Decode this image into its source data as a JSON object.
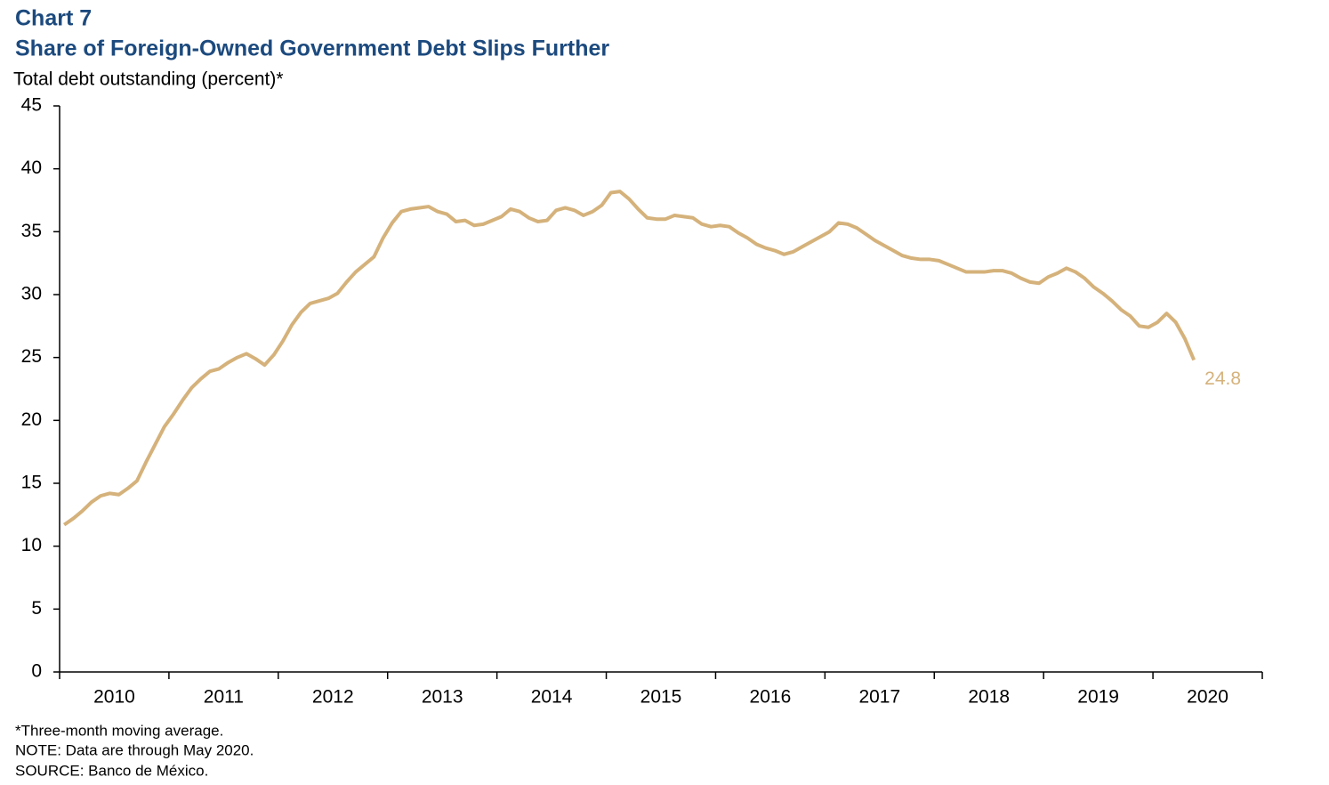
{
  "chart_data": {
    "type": "line",
    "chart_label": "Chart 7",
    "title": "Share of Foreign-Owned Government Debt Slips Further",
    "y_label": "Total debt outstanding (percent)*",
    "notes": [
      "*Three-month moving average.",
      "NOTE: Data are through May 2020.",
      "SOURCE: Banco de México."
    ],
    "color": "#d5b27b",
    "x": [
      "2010-01",
      "2010-02",
      "2010-03",
      "2010-04",
      "2010-05",
      "2010-06",
      "2010-07",
      "2010-08",
      "2010-09",
      "2010-10",
      "2010-11",
      "2010-12",
      "2011-01",
      "2011-02",
      "2011-03",
      "2011-04",
      "2011-05",
      "2011-06",
      "2011-07",
      "2011-08",
      "2011-09",
      "2011-10",
      "2011-11",
      "2011-12",
      "2012-01",
      "2012-02",
      "2012-03",
      "2012-04",
      "2012-05",
      "2012-06",
      "2012-07",
      "2012-08",
      "2012-09",
      "2012-10",
      "2012-11",
      "2012-12",
      "2013-01",
      "2013-02",
      "2013-03",
      "2013-04",
      "2013-05",
      "2013-06",
      "2013-07",
      "2013-08",
      "2013-09",
      "2013-10",
      "2013-11",
      "2013-12",
      "2014-01",
      "2014-02",
      "2014-03",
      "2014-04",
      "2014-05",
      "2014-06",
      "2014-07",
      "2014-08",
      "2014-09",
      "2014-10",
      "2014-11",
      "2014-12",
      "2015-01",
      "2015-02",
      "2015-03",
      "2015-04",
      "2015-05",
      "2015-06",
      "2015-07",
      "2015-08",
      "2015-09",
      "2015-10",
      "2015-11",
      "2015-12",
      "2016-01",
      "2016-02",
      "2016-03",
      "2016-04",
      "2016-05",
      "2016-06",
      "2016-07",
      "2016-08",
      "2016-09",
      "2016-10",
      "2016-11",
      "2016-12",
      "2017-01",
      "2017-02",
      "2017-03",
      "2017-04",
      "2017-05",
      "2017-06",
      "2017-07",
      "2017-08",
      "2017-09",
      "2017-10",
      "2017-11",
      "2017-12",
      "2018-01",
      "2018-02",
      "2018-03",
      "2018-04",
      "2018-05",
      "2018-06",
      "2018-07",
      "2018-08",
      "2018-09",
      "2018-10",
      "2018-11",
      "2018-12",
      "2019-01",
      "2019-02",
      "2019-03",
      "2019-04",
      "2019-05",
      "2019-06",
      "2019-07",
      "2019-08",
      "2019-09",
      "2019-10",
      "2019-11",
      "2019-12",
      "2020-01",
      "2020-02",
      "2020-03",
      "2020-04",
      "2020-05"
    ],
    "values": [
      11.7,
      12.2,
      12.8,
      13.5,
      14.0,
      14.2,
      14.1,
      14.6,
      15.2,
      16.7,
      18.1,
      19.5,
      20.5,
      21.6,
      22.6,
      23.3,
      23.9,
      24.1,
      24.6,
      25.0,
      25.3,
      24.9,
      24.4,
      25.2,
      26.3,
      27.6,
      28.6,
      29.3,
      29.5,
      29.7,
      30.1,
      31.0,
      31.8,
      32.4,
      33.0,
      34.5,
      35.7,
      36.6,
      36.8,
      36.9,
      37.0,
      36.6,
      36.4,
      35.8,
      35.9,
      35.5,
      35.6,
      35.9,
      36.2,
      36.8,
      36.6,
      36.1,
      35.8,
      35.9,
      36.7,
      36.9,
      36.7,
      36.3,
      36.6,
      37.1,
      38.1,
      38.2,
      37.6,
      36.8,
      36.1,
      36.0,
      36.0,
      36.3,
      36.2,
      36.1,
      35.6,
      35.4,
      35.5,
      35.4,
      34.9,
      34.5,
      34.0,
      33.7,
      33.5,
      33.2,
      33.4,
      33.8,
      34.2,
      34.6,
      35.0,
      35.7,
      35.6,
      35.3,
      34.8,
      34.3,
      33.9,
      33.5,
      33.1,
      32.9,
      32.8,
      32.8,
      32.7,
      32.4,
      32.1,
      31.8,
      31.8,
      31.8,
      31.9,
      31.9,
      31.7,
      31.3,
      31.0,
      30.9,
      31.4,
      31.7,
      32.1,
      31.8,
      31.3,
      30.6,
      30.1,
      29.5,
      28.8,
      28.3,
      27.5,
      27.4,
      27.8,
      28.5,
      27.8,
      26.5,
      24.8
    ],
    "xlim": [
      2010,
      2021
    ],
    "xticks": [
      2010,
      2011,
      2012,
      2013,
      2014,
      2015,
      2016,
      2017,
      2018,
      2019,
      2020
    ],
    "ylim": [
      0,
      45
    ],
    "yticks": [
      0,
      5,
      10,
      15,
      20,
      25,
      30,
      35,
      40,
      45
    ],
    "grid": false
  }
}
